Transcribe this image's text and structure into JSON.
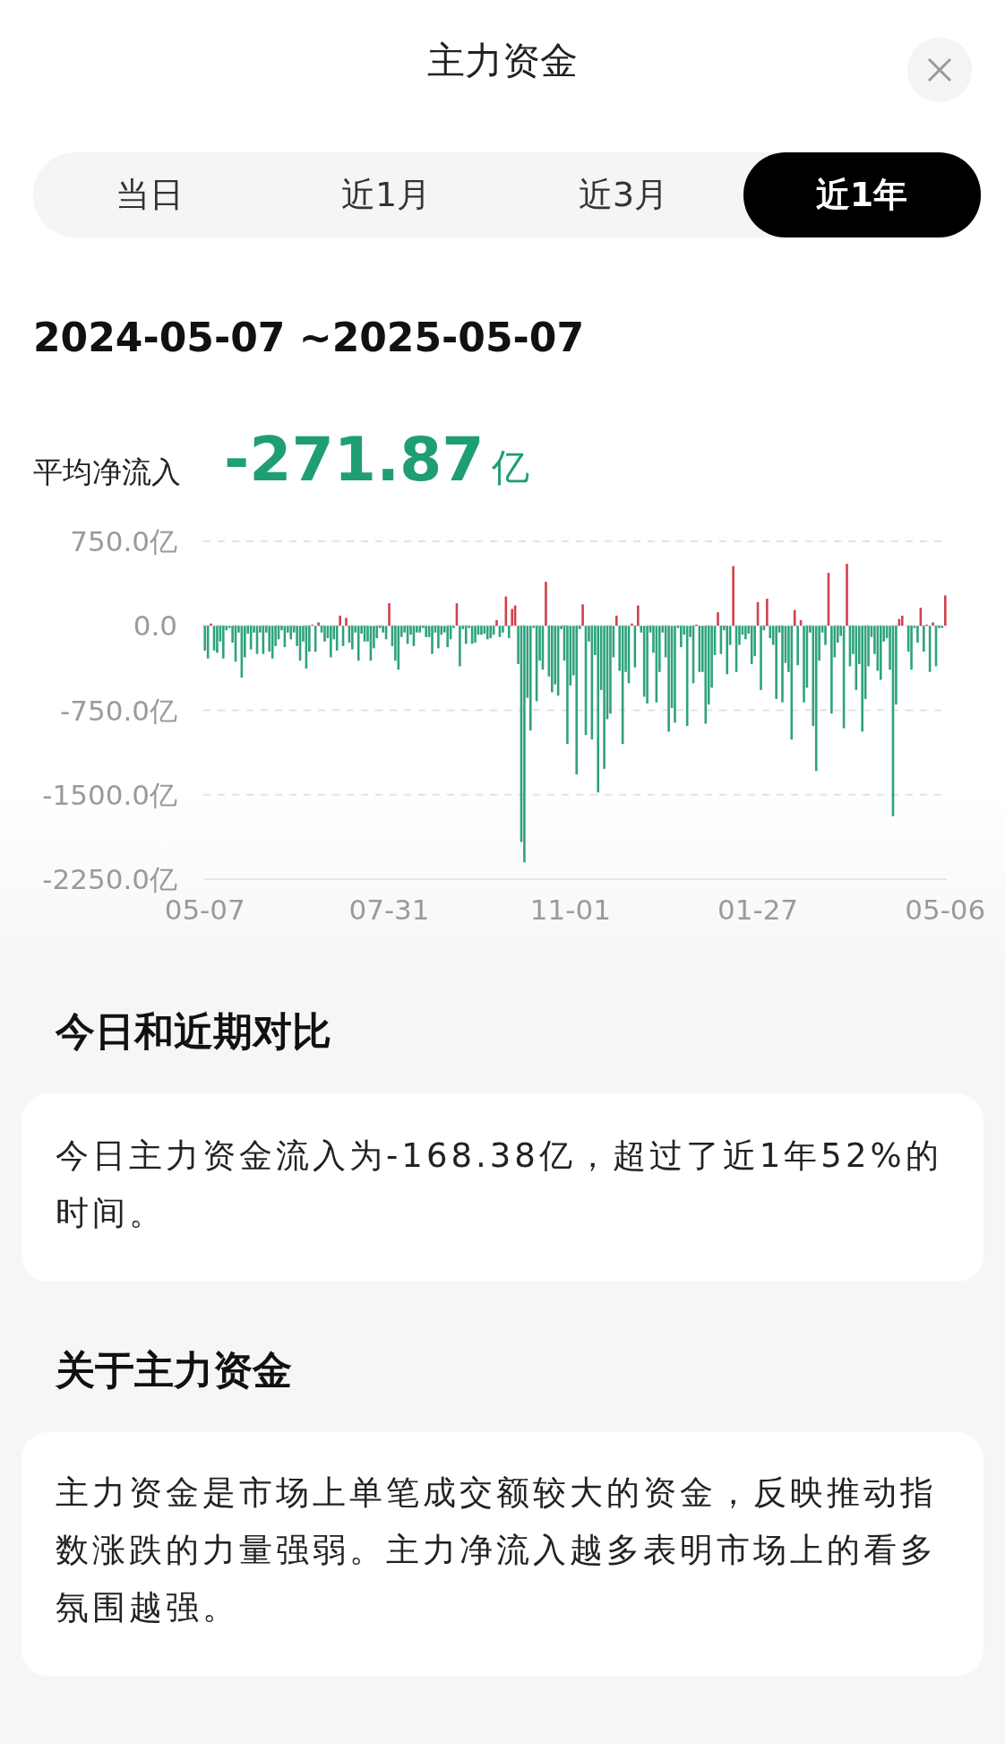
{
  "chart_data": {
    "type": "bar",
    "title": "主力资金",
    "annotations": [
      "当日",
      "近1月",
      "近3月",
      "近1年",
      "2024-05-07 ~2025-05-07",
      "平均净流入",
      "-271.87",
      "亿",
      "今日和近期对比",
      "今日主力资金流入为-168.38亿，超过了近1年52%的时间。",
      "关于主力资金",
      "主力资金是市场上单笔成交额较大的资金，反映推动指数涨跌的力量强弱。主力净流入越多表明市场上的看多氛围越强。"
    ],
    "ylim": [
      -2250,
      750
    ],
    "yticks": [
      {
        "value": 750,
        "label": "750.0亿"
      },
      {
        "value": 0,
        "label": "0.0"
      },
      {
        "value": -750,
        "label": "-750.0亿"
      },
      {
        "value": -1500,
        "label": "-1500.0亿"
      },
      {
        "value": -2250,
        "label": "-2250.0亿"
      }
    ],
    "grid": "y",
    "categories": [
      "05-07",
      null,
      null,
      null,
      null,
      null,
      null,
      null,
      null,
      null,
      null,
      null,
      null,
      null,
      null,
      null,
      null,
      null,
      null,
      null,
      null,
      null,
      null,
      null,
      null,
      null,
      null,
      null,
      null,
      null,
      null,
      null,
      null,
      null,
      null,
      null,
      null,
      null,
      null,
      null,
      null,
      null,
      null,
      null,
      null,
      null,
      null,
      null,
      null,
      null,
      null,
      null,
      null,
      null,
      null,
      null,
      null,
      null,
      null,
      null,
      "07-31",
      null,
      null,
      null,
      null,
      null,
      null,
      null,
      null,
      null,
      null,
      null,
      null,
      null,
      null,
      null,
      null,
      null,
      null,
      null,
      null,
      null,
      null,
      null,
      null,
      null,
      null,
      null,
      null,
      null,
      null,
      null,
      null,
      null,
      null,
      null,
      null,
      null,
      null,
      null,
      null,
      null,
      null,
      null,
      null,
      null,
      null,
      null,
      null,
      null,
      null,
      null,
      null,
      null,
      null,
      null,
      null,
      null,
      null,
      "11-01",
      null,
      null,
      null,
      null,
      null,
      null,
      null,
      null,
      null,
      null,
      null,
      null,
      null,
      null,
      null,
      null,
      null,
      null,
      null,
      null,
      null,
      null,
      null,
      null,
      null,
      null,
      null,
      null,
      null,
      null,
      null,
      null,
      null,
      null,
      null,
      null,
      null,
      null,
      null,
      null,
      null,
      null,
      null,
      null,
      null,
      null,
      null,
      null,
      null,
      null,
      null,
      null,
      null,
      null,
      null,
      null,
      null,
      null,
      null,
      null,
      "01-27",
      null,
      null,
      null,
      null,
      null,
      null,
      null,
      null,
      null,
      null,
      null,
      null,
      null,
      null,
      null,
      null,
      null,
      null,
      null,
      null,
      null,
      null,
      null,
      null,
      null,
      null,
      null,
      null,
      null,
      null,
      null,
      null,
      null,
      null,
      null,
      null,
      null,
      null,
      null,
      null,
      null,
      null,
      null,
      null,
      null,
      null,
      null,
      null,
      null,
      null,
      null,
      null,
      null,
      null,
      null,
      null,
      null,
      null,
      null,
      null,
      "05-06"
    ],
    "colors": [
      "#2fa27e",
      "#2fa27e",
      "#d0434b",
      "#2fa27e",
      "#2fa27e",
      "#2fa27e",
      "#2fa27e",
      "#2fa27e",
      "#2fa27e",
      "#2fa27e",
      "#2fa27e",
      "#2fa27e",
      "#2fa27e",
      "#2fa27e",
      "#2fa27e",
      "#2fa27e",
      "#2fa27e",
      "#2fa27e",
      "#2fa27e",
      "#2fa27e",
      "#2fa27e",
      "#2fa27e",
      "#2fa27e",
      "#2fa27e",
      "#2fa27e",
      "#2fa27e",
      "#2fa27e",
      "#2fa27e",
      "#2fa27e",
      "#2fa27e",
      "#2fa27e",
      "#2fa27e",
      "#2fa27e",
      "#2fa27e",
      "#2fa27e",
      "#d0434b",
      "#2fa27e",
      "#d0434b",
      "#2fa27e",
      "#2fa27e",
      "#2fa27e",
      "#2fa27e",
      "#2fa27e",
      "#2fa27e",
      "#d0434b",
      "#2fa27e",
      "#d0434b",
      "#2fa27e",
      "#2fa27e",
      "#2fa27e",
      "#2fa27e",
      "#2fa27e",
      "#2fa27e",
      "#2fa27e",
      "#2fa27e",
      "#2fa27e",
      "#2fa27e",
      "#2fa27e",
      "#2fa27e",
      "#2fa27e",
      "#d0434b",
      "#2fa27e",
      "#2fa27e",
      "#2fa27e",
      "#2fa27e",
      "#2fa27e",
      "#2fa27e",
      "#2fa27e",
      "#2fa27e",
      "#2fa27e",
      "#2fa27e",
      "#2fa27e",
      "#2fa27e",
      "#2fa27e",
      "#2fa27e",
      "#2fa27e",
      "#2fa27e",
      "#2fa27e",
      "#2fa27e",
      "#2fa27e",
      "#2fa27e",
      "#2fa27e",
      "#d0434b",
      "#2fa27e",
      "#2fa27e",
      "#2fa27e",
      "#2fa27e",
      "#2fa27e",
      "#2fa27e",
      "#2fa27e",
      "#2fa27e",
      "#2fa27e",
      "#2fa27e",
      "#2fa27e",
      "#2fa27e",
      "#d0434b",
      "#2fa27e",
      "#2fa27e",
      "#d0434b",
      "#2fa27e",
      "#d0434b",
      "#d0434b",
      "#2fa27e",
      "#2fa27e",
      "#2fa27e",
      "#2fa27e",
      "#2fa27e",
      "#2fa27e",
      "#2fa27e",
      "#2fa27e",
      "#2fa27e",
      "#d0434b",
      "#2fa27e",
      "#2fa27e",
      "#2fa27e",
      "#2fa27e",
      "#2fa27e",
      "#2fa27e",
      "#2fa27e",
      "#2fa27e",
      "#2fa27e",
      "#2fa27e",
      "#2fa27e",
      "#d0434b",
      "#2fa27e",
      "#2fa27e",
      "#2fa27e",
      "#2fa27e",
      "#2fa27e",
      "#2fa27e",
      "#2fa27e",
      "#2fa27e",
      "#2fa27e",
      "#2fa27e",
      "#d0434b",
      "#2fa27e",
      "#2fa27e",
      "#2fa27e",
      "#2fa27e",
      "#d0434b",
      "#2fa27e",
      "#d0434b",
      "#2fa27e",
      "#2fa27e",
      "#2fa27e",
      "#2fa27e",
      "#2fa27e",
      "#2fa27e",
      "#2fa27e",
      "#2fa27e",
      "#2fa27e",
      "#2fa27e",
      "#2fa27e",
      "#2fa27e",
      "#2fa27e",
      "#2fa27e",
      "#2fa27e",
      "#2fa27e",
      "#2fa27e",
      "#2fa27e",
      "#d0434b",
      "#2fa27e",
      "#2fa27e",
      "#2fa27e",
      "#2fa27e",
      "#2fa27e",
      "#2fa27e",
      "#d0434b",
      "#2fa27e",
      "#2fa27e",
      "#2fa27e",
      "#2fa27e",
      "#d0434b",
      "#2fa27e",
      "#2fa27e",
      "#2fa27e",
      "#2fa27e",
      "#2fa27e",
      "#2fa27e",
      "#2fa27e",
      "#d0434b",
      "#2fa27e",
      "#2fa27e",
      "#d0434b",
      "#2fa27e",
      "#2fa27e",
      "#2fa27e",
      "#2fa27e",
      "#2fa27e",
      "#2fa27e",
      "#2fa27e",
      "#2fa27e",
      "#d0434b",
      "#2fa27e",
      "#d0434b",
      "#2fa27e",
      "#2fa27e",
      "#2fa27e",
      "#2fa27e",
      "#2fa27e",
      "#2fa27e",
      "#2fa27e",
      "#2fa27e",
      "#d0434b",
      "#2fa27e",
      "#2fa27e",
      "#2fa27e",
      "#2fa27e",
      "#2fa27e",
      "#d0434b",
      "#2fa27e",
      "#2fa27e",
      "#2fa27e",
      "#2fa27e",
      "#2fa27e",
      "#2fa27e",
      "#2fa27e",
      "#2fa27e",
      "#2fa27e",
      "#2fa27e",
      "#2fa27e",
      "#2fa27e",
      "#2fa27e",
      "#2fa27e",
      "#2fa27e",
      "#2fa27e",
      "#d0434b",
      "#d0434b",
      null,
      "#2fa27e",
      "#2fa27e",
      "#2fa27e",
      "#2fa27e",
      "#d0434b",
      "#2fa27e",
      "#d0434b",
      "#2fa27e",
      "#d0434b",
      "#2fa27e",
      "#2fa27e",
      "#2fa27e",
      "#d0434b"
    ],
    "values": [
      -220,
      -290,
      20,
      -220,
      -240,
      -140,
      -290,
      -40,
      -20,
      -150,
      -320,
      -60,
      -460,
      -280,
      -70,
      -210,
      -60,
      -250,
      -60,
      -250,
      -60,
      -230,
      -290,
      -180,
      -120,
      -40,
      -190,
      -60,
      -120,
      -60,
      -180,
      -310,
      -140,
      -380,
      -230,
      10,
      -230,
      30,
      -60,
      -140,
      -110,
      -280,
      -120,
      -220,
      90,
      -180,
      70,
      -150,
      -210,
      -60,
      -310,
      -70,
      -140,
      -140,
      -310,
      -200,
      -110,
      -20,
      -60,
      -120,
      200,
      -180,
      -310,
      -390,
      -100,
      -60,
      -160,
      -80,
      -180,
      -60,
      -60,
      -20,
      -100,
      -100,
      -250,
      -60,
      -200,
      -80,
      -60,
      -190,
      -120,
      -20,
      200,
      -360,
      -30,
      -160,
      -20,
      -160,
      -150,
      -80,
      -80,
      -70,
      -120,
      -110,
      -80,
      50,
      -100,
      -60,
      260,
      -110,
      150,
      180,
      -340,
      -1920,
      -2100,
      -640,
      -930,
      -20,
      -670,
      -310,
      -390,
      390,
      -450,
      -590,
      -520,
      -620,
      -30,
      -310,
      -1050,
      -530,
      -440,
      -1320,
      -30,
      190,
      -970,
      -140,
      -1010,
      -260,
      -1480,
      -570,
      -1270,
      -830,
      -780,
      -280,
      90,
      -400,
      -1050,
      -410,
      -510,
      20,
      -370,
      180,
      -60,
      -630,
      -690,
      -60,
      -240,
      -680,
      -410,
      -60,
      -280,
      -940,
      -730,
      -860,
      -20,
      -190,
      -80,
      -890,
      -100,
      -510,
      10,
      -410,
      -410,
      -870,
      -700,
      -550,
      -260,
      120,
      -250,
      -40,
      -430,
      -170,
      530,
      -410,
      -170,
      -80,
      -120,
      -70,
      -340,
      -270,
      210,
      -570,
      -40,
      240,
      -110,
      -170,
      -650,
      -60,
      -680,
      -330,
      -410,
      -1010,
      140,
      -350,
      50,
      -680,
      -550,
      -60,
      -890,
      -1290,
      -310,
      -60,
      -170,
      470,
      -780,
      -280,
      -150,
      -90,
      -910,
      550,
      -360,
      -250,
      -570,
      -340,
      -940,
      -650,
      -360,
      -100,
      -250,
      -400,
      -480,
      -140,
      -110,
      -390,
      -1690,
      -700,
      60,
      90,
      null,
      -230,
      -390,
      -20,
      -150,
      160,
      -230,
      10,
      -410,
      30,
      -360,
      -20,
      -20,
      270
    ]
  }
}
